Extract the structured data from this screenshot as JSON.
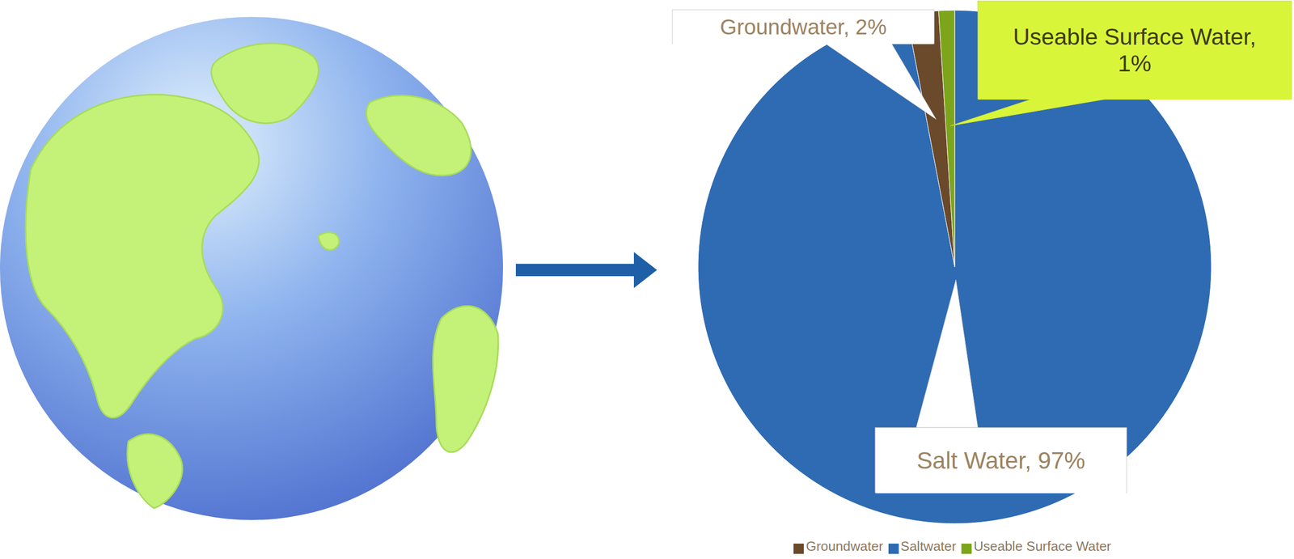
{
  "chart_data": {
    "type": "pie",
    "categories": [
      "Saltwater",
      "Groundwater",
      "Useable Surface Water"
    ],
    "values": [
      97,
      2,
      1
    ],
    "value_labels": [
      "Salt Water, 97%",
      "Groundwater, 2%",
      "Useable Surface Water, 1%"
    ],
    "colors": [
      "#2e6bb3",
      "#6b4a2b",
      "#7ca51c"
    ],
    "data_labels": true,
    "legend": "bottom"
  }
}
